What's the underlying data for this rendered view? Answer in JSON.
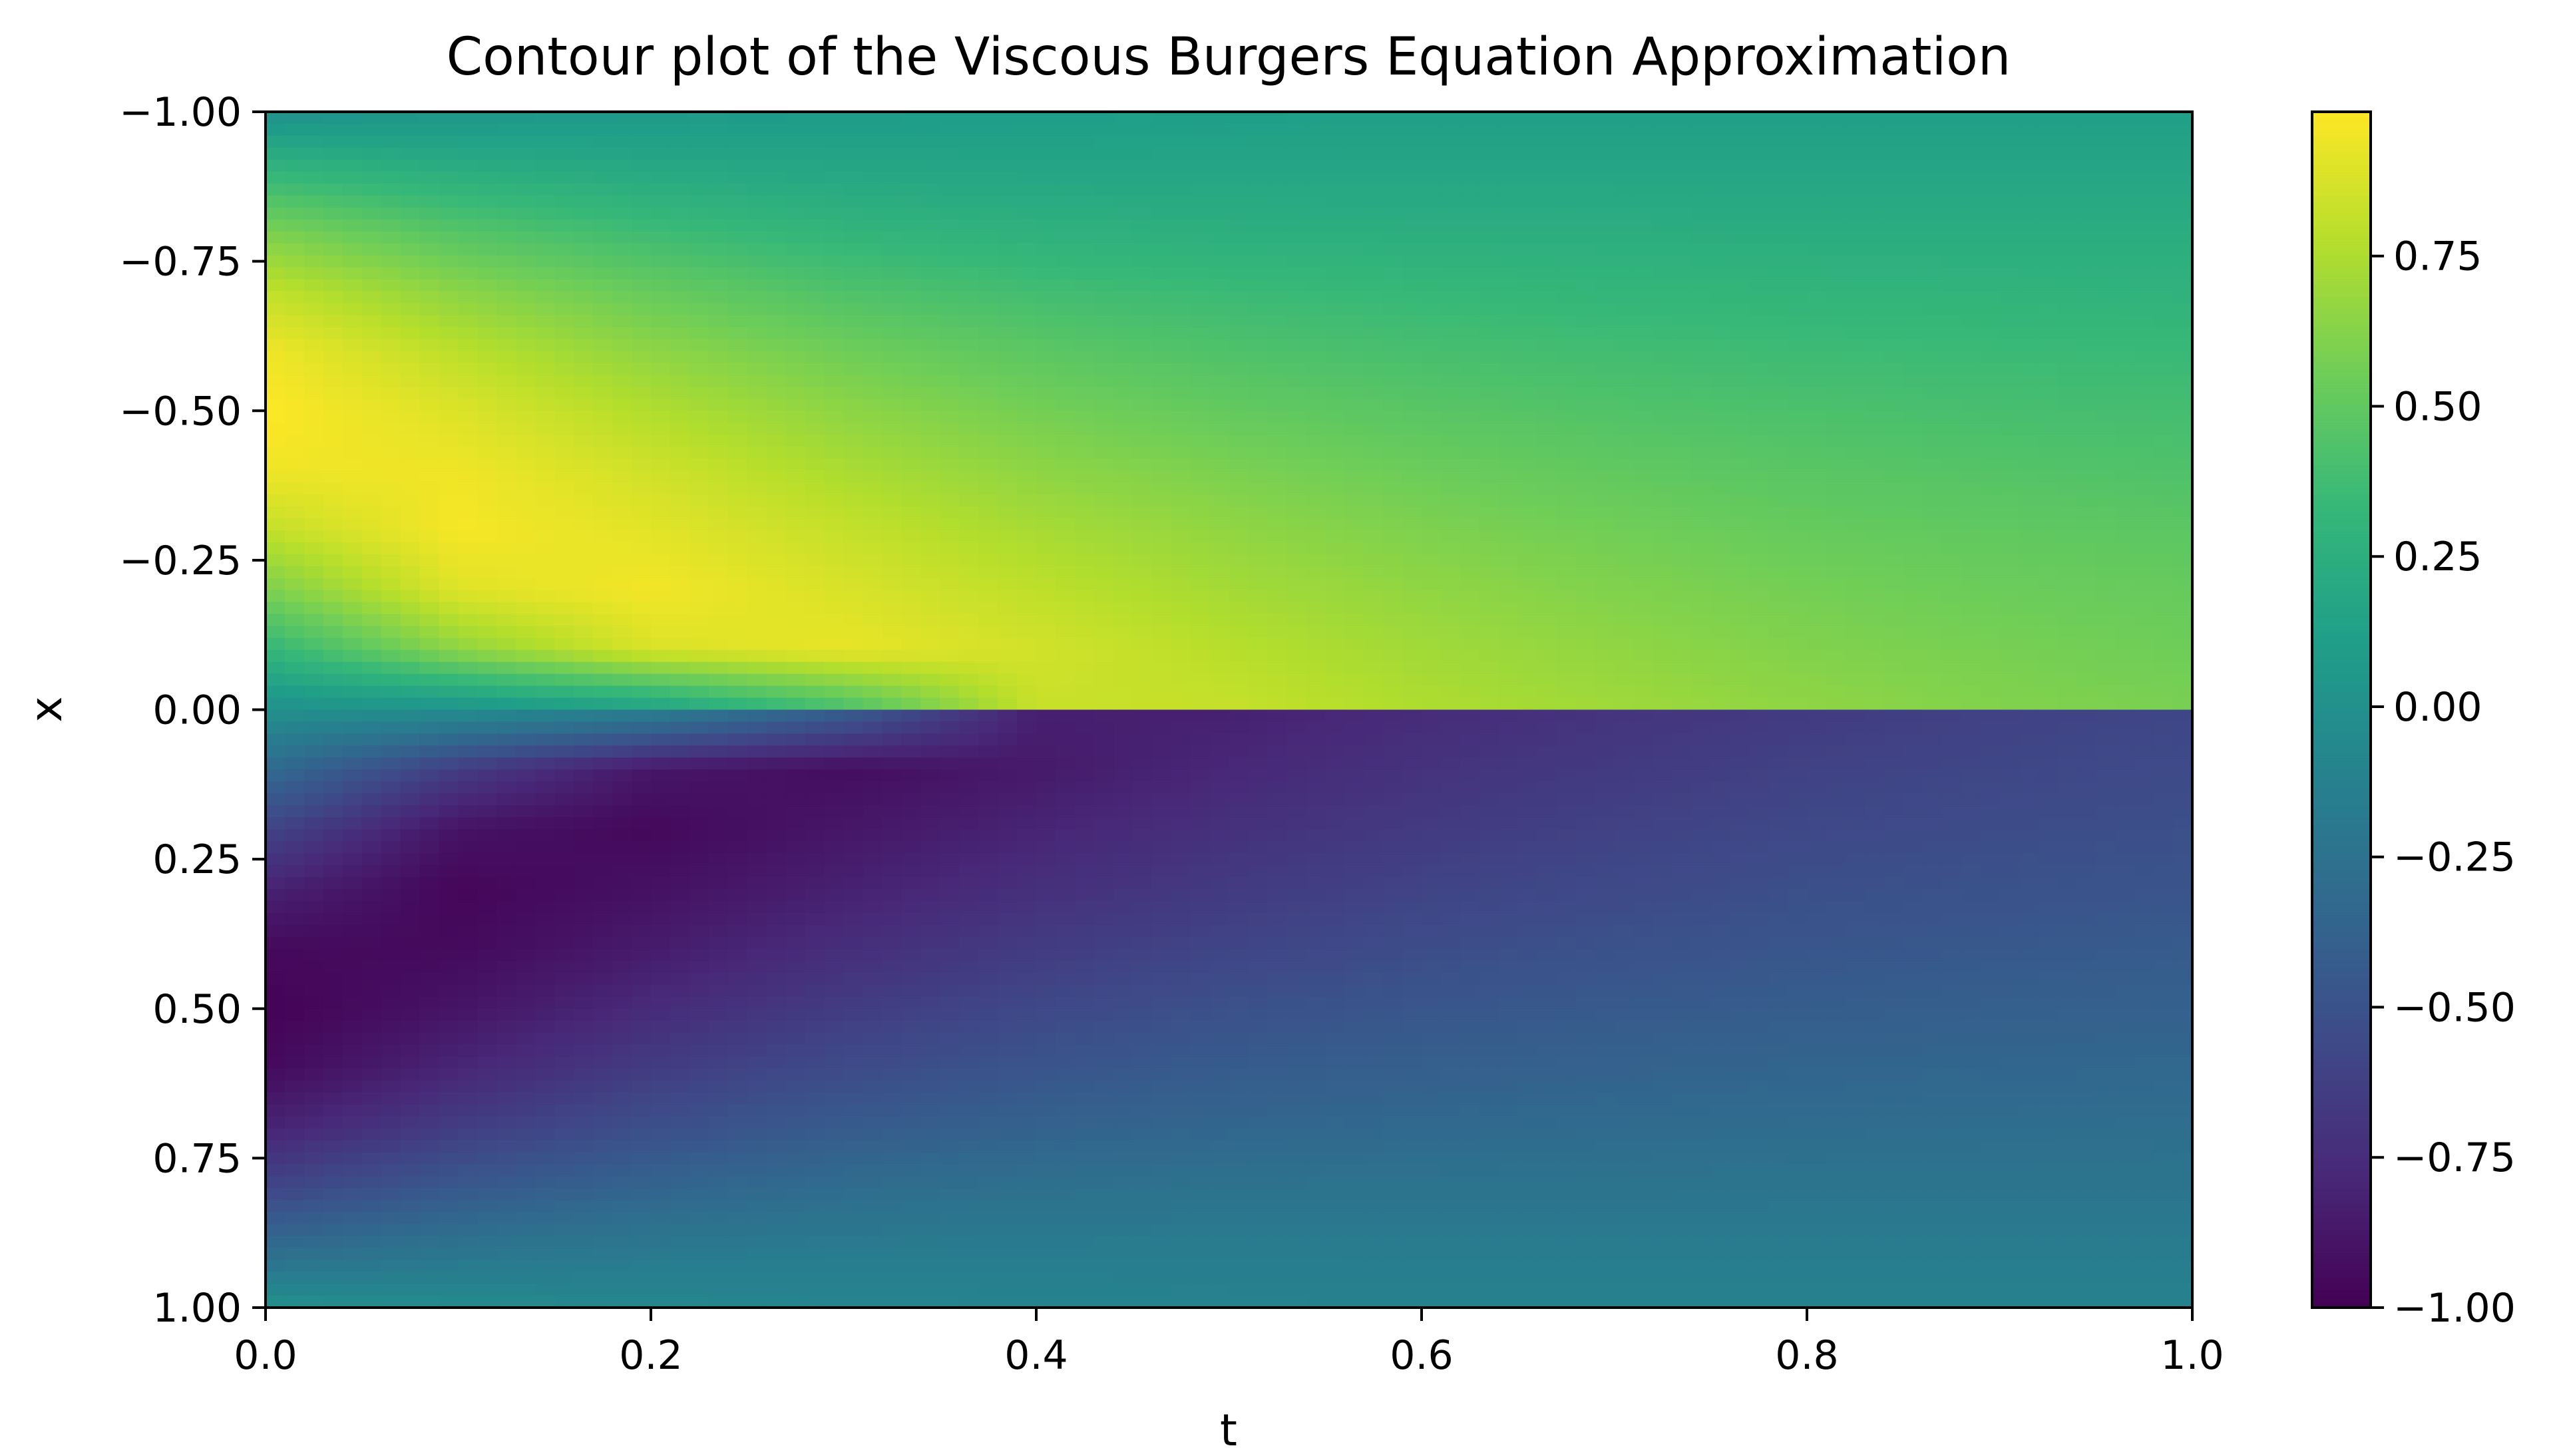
{
  "chart_data": {
    "type": "heatmap",
    "title": "Contour plot of the Viscous Burgers Equation Approximation",
    "xlabel": "t",
    "ylabel": "x",
    "xlim": [
      0.0,
      1.0
    ],
    "ylim": [
      -1.0,
      1.0
    ],
    "y_axis_inverted": true,
    "x_ticks": [
      {
        "value": 0.0,
        "label": "0.0"
      },
      {
        "value": 0.2,
        "label": "0.2"
      },
      {
        "value": 0.4,
        "label": "0.4"
      },
      {
        "value": 0.6,
        "label": "0.6"
      },
      {
        "value": 0.8,
        "label": "0.8"
      },
      {
        "value": 1.0,
        "label": "1.0"
      }
    ],
    "y_ticks": [
      {
        "value": -1.0,
        "label": "−1.00"
      },
      {
        "value": -0.75,
        "label": "−0.75"
      },
      {
        "value": -0.5,
        "label": "−0.50"
      },
      {
        "value": -0.25,
        "label": "−0.25"
      },
      {
        "value": 0.0,
        "label": "0.00"
      },
      {
        "value": 0.25,
        "label": "0.25"
      },
      {
        "value": 0.5,
        "label": "0.50"
      },
      {
        "value": 0.75,
        "label": "0.75"
      },
      {
        "value": 1.0,
        "label": "1.00"
      }
    ],
    "colorbar": {
      "colormap": "viridis",
      "vmin": -1.0,
      "vmax": 0.99,
      "ticks": [
        {
          "value": 0.75,
          "label": "0.75"
        },
        {
          "value": 0.5,
          "label": "0.50"
        },
        {
          "value": 0.25,
          "label": "0.25"
        },
        {
          "value": 0.0,
          "label": "0.00"
        },
        {
          "value": -0.25,
          "label": "−0.25"
        },
        {
          "value": -0.5,
          "label": "−0.50"
        },
        {
          "value": -0.75,
          "label": "−0.75"
        },
        {
          "value": -1.0,
          "label": "−1.00"
        }
      ]
    },
    "grid": false,
    "t": [
      0.0,
      0.1,
      0.2,
      0.3,
      0.4,
      0.5,
      0.6,
      0.7,
      0.8,
      0.9,
      1.0
    ],
    "x": [
      -1.0,
      -0.9,
      -0.8,
      -0.7,
      -0.6,
      -0.5,
      -0.4,
      -0.3,
      -0.2,
      -0.1,
      -0.01,
      0.01,
      0.1,
      0.2,
      0.3,
      0.4,
      0.5,
      0.6,
      0.7,
      0.8,
      0.9,
      1.0
    ],
    "u_rows_by_x": [
      [
        0.0,
        0.04,
        0.07,
        0.09,
        0.1,
        0.11,
        0.12,
        0.12,
        0.12,
        0.12,
        0.12
      ],
      [
        0.31,
        0.24,
        0.2,
        0.18,
        0.17,
        0.17,
        0.17,
        0.17,
        0.17,
        0.17,
        0.17
      ],
      [
        0.59,
        0.45,
        0.36,
        0.3,
        0.27,
        0.25,
        0.24,
        0.24,
        0.23,
        0.23,
        0.23
      ],
      [
        0.81,
        0.64,
        0.52,
        0.43,
        0.38,
        0.35,
        0.33,
        0.31,
        0.3,
        0.29,
        0.28
      ],
      [
        0.95,
        0.79,
        0.65,
        0.55,
        0.48,
        0.43,
        0.4,
        0.38,
        0.36,
        0.35,
        0.34
      ],
      [
        0.99,
        0.89,
        0.76,
        0.65,
        0.57,
        0.51,
        0.47,
        0.44,
        0.42,
        0.4,
        0.39
      ],
      [
        0.95,
        0.95,
        0.85,
        0.74,
        0.65,
        0.59,
        0.54,
        0.5,
        0.47,
        0.45,
        0.43
      ],
      [
        0.81,
        0.97,
        0.91,
        0.82,
        0.73,
        0.66,
        0.6,
        0.56,
        0.52,
        0.5,
        0.48
      ],
      [
        0.59,
        0.9,
        0.96,
        0.88,
        0.8,
        0.72,
        0.66,
        0.61,
        0.57,
        0.54,
        0.52
      ],
      [
        0.31,
        0.65,
        0.88,
        0.93,
        0.86,
        0.78,
        0.71,
        0.66,
        0.61,
        0.58,
        0.55
      ],
      [
        0.03,
        0.08,
        0.2,
        0.45,
        0.83,
        0.82,
        0.75,
        0.7,
        0.65,
        0.61,
        0.58
      ],
      [
        -0.03,
        -0.08,
        -0.2,
        -0.45,
        -0.83,
        -0.82,
        -0.75,
        -0.7,
        -0.65,
        -0.61,
        -0.58
      ],
      [
        -0.31,
        -0.65,
        -0.88,
        -0.93,
        -0.86,
        -0.78,
        -0.71,
        -0.66,
        -0.61,
        -0.58,
        -0.55
      ],
      [
        -0.59,
        -0.9,
        -0.96,
        -0.88,
        -0.8,
        -0.72,
        -0.66,
        -0.61,
        -0.57,
        -0.54,
        -0.52
      ],
      [
        -0.81,
        -0.97,
        -0.91,
        -0.82,
        -0.73,
        -0.66,
        -0.6,
        -0.56,
        -0.52,
        -0.5,
        -0.48
      ],
      [
        -0.95,
        -0.95,
        -0.85,
        -0.74,
        -0.65,
        -0.59,
        -0.54,
        -0.5,
        -0.47,
        -0.45,
        -0.43
      ],
      [
        -0.99,
        -0.89,
        -0.76,
        -0.65,
        -0.57,
        -0.51,
        -0.47,
        -0.44,
        -0.42,
        -0.4,
        -0.39
      ],
      [
        -0.95,
        -0.79,
        -0.65,
        -0.55,
        -0.48,
        -0.43,
        -0.4,
        -0.38,
        -0.36,
        -0.35,
        -0.34
      ],
      [
        -0.81,
        -0.64,
        -0.52,
        -0.43,
        -0.38,
        -0.35,
        -0.33,
        -0.31,
        -0.3,
        -0.29,
        -0.28
      ],
      [
        -0.59,
        -0.45,
        -0.36,
        -0.3,
        -0.27,
        -0.25,
        -0.24,
        -0.24,
        -0.23,
        -0.23,
        -0.23
      ],
      [
        -0.31,
        -0.24,
        -0.2,
        -0.18,
        -0.17,
        -0.17,
        -0.17,
        -0.17,
        -0.17,
        -0.17,
        -0.17
      ],
      [
        0.0,
        -0.04,
        -0.07,
        -0.09,
        -0.1,
        -0.11,
        -0.12,
        -0.12,
        -0.12,
        -0.12,
        -0.12
      ]
    ]
  }
}
